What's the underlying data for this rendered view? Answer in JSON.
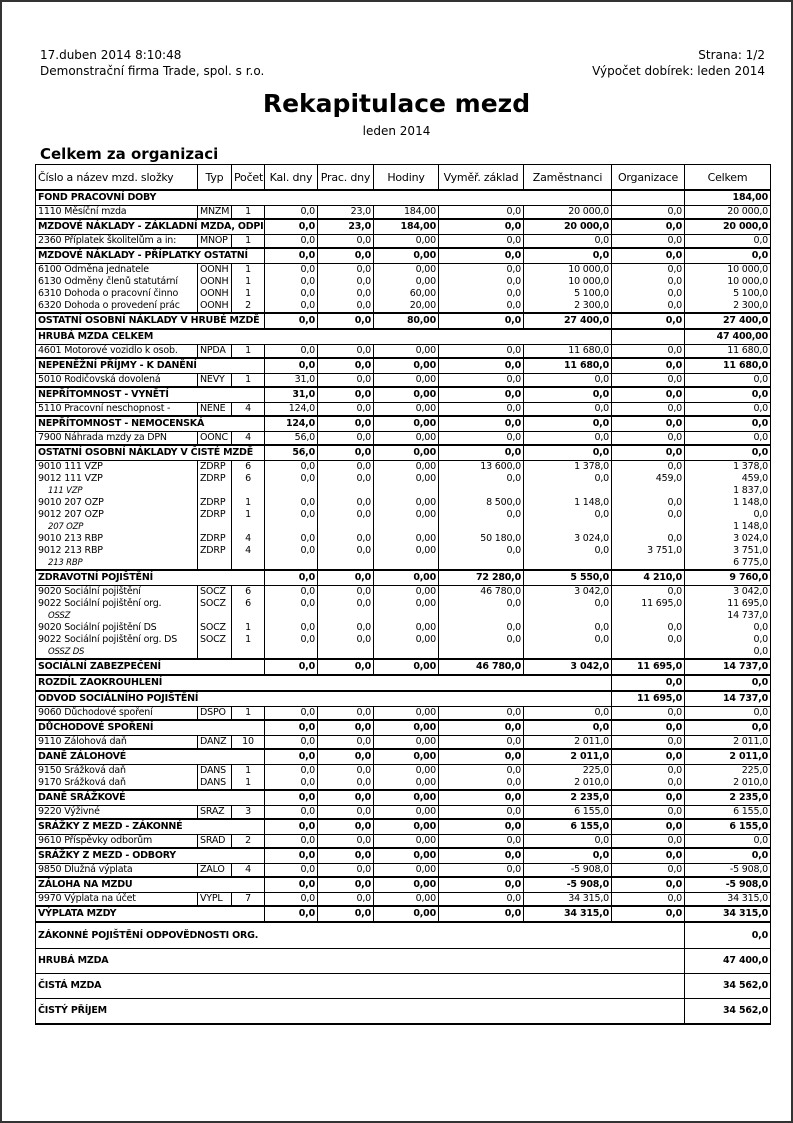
{
  "header": {
    "datetime": "17.duben 2014  8:10:48",
    "company": "Demonstrační firma Trade, spol. s r.o.",
    "page": "Strana: 1/2",
    "period_info": "Výpočet dobírek: leden 2014"
  },
  "title": "Rekapitulace mezd",
  "subtitle": "leden 2014",
  "section": "Celkem za organizaci",
  "columns": [
    "Číslo a název mzd. složky",
    "Typ",
    "Počet",
    "Kal. dny",
    "Prac. dny",
    "Hodiny",
    "Vyměř. základ",
    "Zaměstnanci",
    "Organizace",
    "Celkem"
  ],
  "rows": [
    {
      "t": "head",
      "name": "FOND PRACOVNÍ DOBY",
      "org": "",
      "total": "184,00"
    },
    {
      "t": "item",
      "name": "1110 Měsíční mzda",
      "typ": "MNZM",
      "pocet": "1",
      "vals": [
        "0,0",
        "23,0",
        "184,00",
        "0,0",
        "20 000,0",
        "0,0",
        "20 000,0"
      ]
    },
    {
      "t": "sum",
      "name": "MZDOVÉ NÁKLADY - ZÁKLADNÍ MZDA, ODPI",
      "vals": [
        "0,0",
        "23,0",
        "184,00",
        "0,0",
        "20 000,0",
        "0,0",
        "20 000,0"
      ]
    },
    {
      "t": "item",
      "name": "2360 Příplatek školitelům a in:",
      "typ": "MNOP",
      "pocet": "1",
      "vals": [
        "0,0",
        "0,0",
        "0,00",
        "0,0",
        "0,0",
        "0,0",
        "0,0"
      ]
    },
    {
      "t": "sum",
      "name": "MZDOVÉ NÁKLADY - PŘÍPLATKY OSTATNÍ",
      "vals": [
        "0,0",
        "0,0",
        "0,00",
        "0,0",
        "0,0",
        "0,0",
        "0,0"
      ]
    },
    {
      "t": "item",
      "name": "6100 Odměna jednatele",
      "typ": "OONH",
      "pocet": "1",
      "vals": [
        "0,0",
        "0,0",
        "0,00",
        "0,0",
        "10 000,0",
        "0,0",
        "10 000,0"
      ]
    },
    {
      "t": "item",
      "name": "6130 Odměny členů statutární",
      "typ": "OONH",
      "pocet": "1",
      "vals": [
        "0,0",
        "0,0",
        "0,00",
        "0,0",
        "10 000,0",
        "0,0",
        "10 000,0"
      ]
    },
    {
      "t": "item",
      "name": "6310 Dohoda o pracovní činno",
      "typ": "OONH",
      "pocet": "1",
      "vals": [
        "0,0",
        "0,0",
        "60,00",
        "0,0",
        "5 100,0",
        "0,0",
        "5 100,0"
      ]
    },
    {
      "t": "item",
      "name": "6320 Dohoda o provedení prác",
      "typ": "OONH",
      "pocet": "2",
      "vals": [
        "0,0",
        "0,0",
        "20,00",
        "0,0",
        "2 300,0",
        "0,0",
        "2 300,0"
      ]
    },
    {
      "t": "sum",
      "name": "OSTATNÍ OSOBNÍ NÁKLADY V HRUBÉ MZDĚ",
      "vals": [
        "0,0",
        "0,0",
        "80,00",
        "0,0",
        "27 400,0",
        "0,0",
        "27 400,0"
      ]
    },
    {
      "t": "head",
      "name": "HRUBÁ MZDA CELKEM",
      "org": "",
      "total": "47 400,00"
    },
    {
      "t": "item",
      "name": "4601 Motorové vozidlo k osob.",
      "typ": "NPDA",
      "pocet": "1",
      "vals": [
        "0,0",
        "0,0",
        "0,00",
        "0,0",
        "11 680,0",
        "0,0",
        "11 680,0"
      ]
    },
    {
      "t": "sum",
      "name": "NEPENĚŽNÍ PŘÍJMY - K DANĚNÍ",
      "vals": [
        "0,0",
        "0,0",
        "0,00",
        "0,0",
        "11 680,0",
        "0,0",
        "11 680,0"
      ]
    },
    {
      "t": "item",
      "name": "5010 Rodičovská dovolená",
      "typ": "NEVY",
      "pocet": "1",
      "vals": [
        "31,0",
        "0,0",
        "0,00",
        "0,0",
        "0,0",
        "0,0",
        "0,0"
      ]
    },
    {
      "t": "sum",
      "name": "NEPŘÍTOMNOST - VYNĚTÍ",
      "vals": [
        "31,0",
        "0,0",
        "0,00",
        "0,0",
        "0,0",
        "0,0",
        "0,0"
      ]
    },
    {
      "t": "item",
      "name": "5110 Pracovní neschopnost -",
      "typ": "NENE",
      "pocet": "4",
      "vals": [
        "124,0",
        "0,0",
        "0,00",
        "0,0",
        "0,0",
        "0,0",
        "0,0"
      ]
    },
    {
      "t": "sum",
      "name": "NEPŘÍTOMNOST - NEMOCENSKÁ",
      "vals": [
        "124,0",
        "0,0",
        "0,00",
        "0,0",
        "0,0",
        "0,0",
        "0,0"
      ]
    },
    {
      "t": "item",
      "name": "7900 Náhrada mzdy za DPN",
      "typ": "OONC",
      "pocet": "4",
      "vals": [
        "56,0",
        "0,0",
        "0,00",
        "0,0",
        "0,0",
        "0,0",
        "0,0"
      ]
    },
    {
      "t": "sum",
      "name": "OSTATNÍ OSOBNÍ NÁKLADY V ČISTÉ MZDĚ",
      "vals": [
        "56,0",
        "0,0",
        "0,00",
        "0,0",
        "0,0",
        "0,0",
        "0,0"
      ]
    },
    {
      "t": "item",
      "name": "9010 111 VZP",
      "typ": "ZDRP",
      "pocet": "6",
      "vals": [
        "0,0",
        "0,0",
        "0,00",
        "13 600,0",
        "1 378,0",
        "0,0",
        "1 378,0"
      ]
    },
    {
      "t": "item",
      "name": "9012 111 VZP",
      "typ": "ZDRP",
      "pocet": "6",
      "vals": [
        "0,0",
        "0,0",
        "0,00",
        "0,0",
        "0,0",
        "459,0",
        "459,0"
      ]
    },
    {
      "t": "sub",
      "name": "111 VZP",
      "total": "1 837,0"
    },
    {
      "t": "item",
      "name": "9010 207 OZP",
      "typ": "ZDRP",
      "pocet": "1",
      "vals": [
        "0,0",
        "0,0",
        "0,00",
        "8 500,0",
        "1 148,0",
        "0,0",
        "1 148,0"
      ]
    },
    {
      "t": "item",
      "name": "9012 207 OZP",
      "typ": "ZDRP",
      "pocet": "1",
      "vals": [
        "0,0",
        "0,0",
        "0,00",
        "0,0",
        "0,0",
        "0,0",
        "0,0"
      ]
    },
    {
      "t": "sub",
      "name": "207 OZP",
      "total": "1 148,0"
    },
    {
      "t": "item",
      "name": "9010 213 RBP",
      "typ": "ZDRP",
      "pocet": "4",
      "vals": [
        "0,0",
        "0,0",
        "0,00",
        "50 180,0",
        "3 024,0",
        "0,0",
        "3 024,0"
      ]
    },
    {
      "t": "item",
      "name": "9012 213 RBP",
      "typ": "ZDRP",
      "pocet": "4",
      "vals": [
        "0,0",
        "0,0",
        "0,00",
        "0,0",
        "0,0",
        "3 751,0",
        "3 751,0"
      ]
    },
    {
      "t": "sub",
      "name": "213 RBP",
      "total": "6 775,0"
    },
    {
      "t": "sum",
      "name": "ZDRAVOTNÍ POJIŠTĚNÍ",
      "vals": [
        "0,0",
        "0,0",
        "0,00",
        "72 280,0",
        "5 550,0",
        "4 210,0",
        "9 760,0"
      ]
    },
    {
      "t": "item",
      "name": "9020 Sociální pojištění",
      "typ": "SOCZ",
      "pocet": "6",
      "vals": [
        "0,0",
        "0,0",
        "0,00",
        "46 780,0",
        "3 042,0",
        "0,0",
        "3 042,0"
      ]
    },
    {
      "t": "item",
      "name": "9022 Sociální pojištění org.",
      "typ": "SOCZ",
      "pocet": "6",
      "vals": [
        "0,0",
        "0,0",
        "0,00",
        "0,0",
        "0,0",
        "11 695,0",
        "11 695,0"
      ]
    },
    {
      "t": "sub",
      "name": "OSSZ",
      "total": "14 737,0"
    },
    {
      "t": "item",
      "name": "9020 Sociální pojištění DS",
      "typ": "SOCZ",
      "pocet": "1",
      "vals": [
        "0,0",
        "0,0",
        "0,00",
        "0,0",
        "0,0",
        "0,0",
        "0,0"
      ]
    },
    {
      "t": "item",
      "name": "9022 Sociální pojištění org. DS",
      "typ": "SOCZ",
      "pocet": "1",
      "vals": [
        "0,0",
        "0,0",
        "0,00",
        "0,0",
        "0,0",
        "0,0",
        "0,0"
      ]
    },
    {
      "t": "sub",
      "name": "OSSZ DS",
      "total": "0,0"
    },
    {
      "t": "sum",
      "name": "SOCIÁLNÍ ZABEZPEČENÍ",
      "vals": [
        "0,0",
        "0,0",
        "0,00",
        "46 780,0",
        "3 042,0",
        "11 695,0",
        "14 737,0"
      ]
    },
    {
      "t": "head",
      "name": "ROZDÍL ZAOKROUHLENÍ",
      "org": "0,0",
      "total": "0,0"
    },
    {
      "t": "head",
      "name": "ODVOD SOCIÁLNÍHO POJIŠTĚNÍ",
      "org": "11 695,0",
      "total": "14 737,0"
    },
    {
      "t": "item",
      "name": "9060 Důchodové spoření",
      "typ": "DSPO",
      "pocet": "1",
      "vals": [
        "0,0",
        "0,0",
        "0,00",
        "0,0",
        "0,0",
        "0,0",
        "0,0"
      ]
    },
    {
      "t": "sum",
      "name": "DŮCHODOVÉ SPOŘENÍ",
      "vals": [
        "0,0",
        "0,0",
        "0,00",
        "0,0",
        "0,0",
        "0,0",
        "0,0"
      ]
    },
    {
      "t": "item",
      "name": "9110 Zálohová daň",
      "typ": "DANZ",
      "pocet": "10",
      "vals": [
        "0,0",
        "0,0",
        "0,00",
        "0,0",
        "2 011,0",
        "0,0",
        "2 011,0"
      ]
    },
    {
      "t": "sum",
      "name": "DANĚ ZÁLOHOVÉ",
      "vals": [
        "0,0",
        "0,0",
        "0,00",
        "0,0",
        "2 011,0",
        "0,0",
        "2 011,0"
      ]
    },
    {
      "t": "item",
      "name": "9150 Srážková daň",
      "typ": "DANS",
      "pocet": "1",
      "vals": [
        "0,0",
        "0,0",
        "0,00",
        "0,0",
        "225,0",
        "0,0",
        "225,0"
      ]
    },
    {
      "t": "item",
      "name": "9170 Srážková daň",
      "typ": "DANS",
      "pocet": "1",
      "vals": [
        "0,0",
        "0,0",
        "0,00",
        "0,0",
        "2 010,0",
        "0,0",
        "2 010,0"
      ]
    },
    {
      "t": "sum",
      "name": "DANĚ SRÁŽKOVÉ",
      "vals": [
        "0,0",
        "0,0",
        "0,00",
        "0,0",
        "2 235,0",
        "0,0",
        "2 235,0"
      ]
    },
    {
      "t": "item",
      "name": "9220 Výživné",
      "typ": "SRAZ",
      "pocet": "3",
      "vals": [
        "0,0",
        "0,0",
        "0,00",
        "0,0",
        "6 155,0",
        "0,0",
        "6 155,0"
      ]
    },
    {
      "t": "sum",
      "name": "SRÁŽKY Z MEZD - ZÁKONNÉ",
      "vals": [
        "0,0",
        "0,0",
        "0,00",
        "0,0",
        "6 155,0",
        "0,0",
        "6 155,0"
      ]
    },
    {
      "t": "item",
      "name": "9610 Příspěvky odborům",
      "typ": "SRAD",
      "pocet": "2",
      "vals": [
        "0,0",
        "0,0",
        "0,00",
        "0,0",
        "0,0",
        "0,0",
        "0,0"
      ]
    },
    {
      "t": "sum",
      "name": "SRÁŽKY Z MEZD - ODBORY",
      "vals": [
        "0,0",
        "0,0",
        "0,00",
        "0,0",
        "0,0",
        "0,0",
        "0,0"
      ]
    },
    {
      "t": "item",
      "name": "9850 Dlužná výplata",
      "typ": "ZALO",
      "pocet": "4",
      "vals": [
        "0,0",
        "0,0",
        "0,00",
        "0,0",
        "-5 908,0",
        "0,0",
        "-5 908,0"
      ]
    },
    {
      "t": "sum",
      "name": "ZÁLOHA NA MZDU",
      "vals": [
        "0,0",
        "0,0",
        "0,00",
        "0,0",
        "-5 908,0",
        "0,0",
        "-5 908,0"
      ]
    },
    {
      "t": "item",
      "name": "9970 Výplata na účet",
      "typ": "VYPL",
      "pocet": "7",
      "vals": [
        "0,0",
        "0,0",
        "0,00",
        "0,0",
        "34 315,0",
        "0,0",
        "34 315,0"
      ]
    },
    {
      "t": "sum",
      "name": "VÝPLATA MZDY",
      "vals": [
        "0,0",
        "0,0",
        "0,00",
        "0,0",
        "34 315,0",
        "0,0",
        "34 315,0"
      ]
    },
    {
      "t": "final",
      "name": "ZÁKONNÉ POJIŠTĚNÍ ODPOVĚDNOSTI ORG.",
      "total": "0,0"
    },
    {
      "t": "final",
      "name": "HRUBÁ MZDA",
      "total": "47 400,0"
    },
    {
      "t": "final",
      "name": "ČISTÁ MZDA",
      "total": "34 562,0"
    },
    {
      "t": "final",
      "name": "ČISTÝ PŘÍJEM",
      "total": "34 562,0"
    }
  ]
}
